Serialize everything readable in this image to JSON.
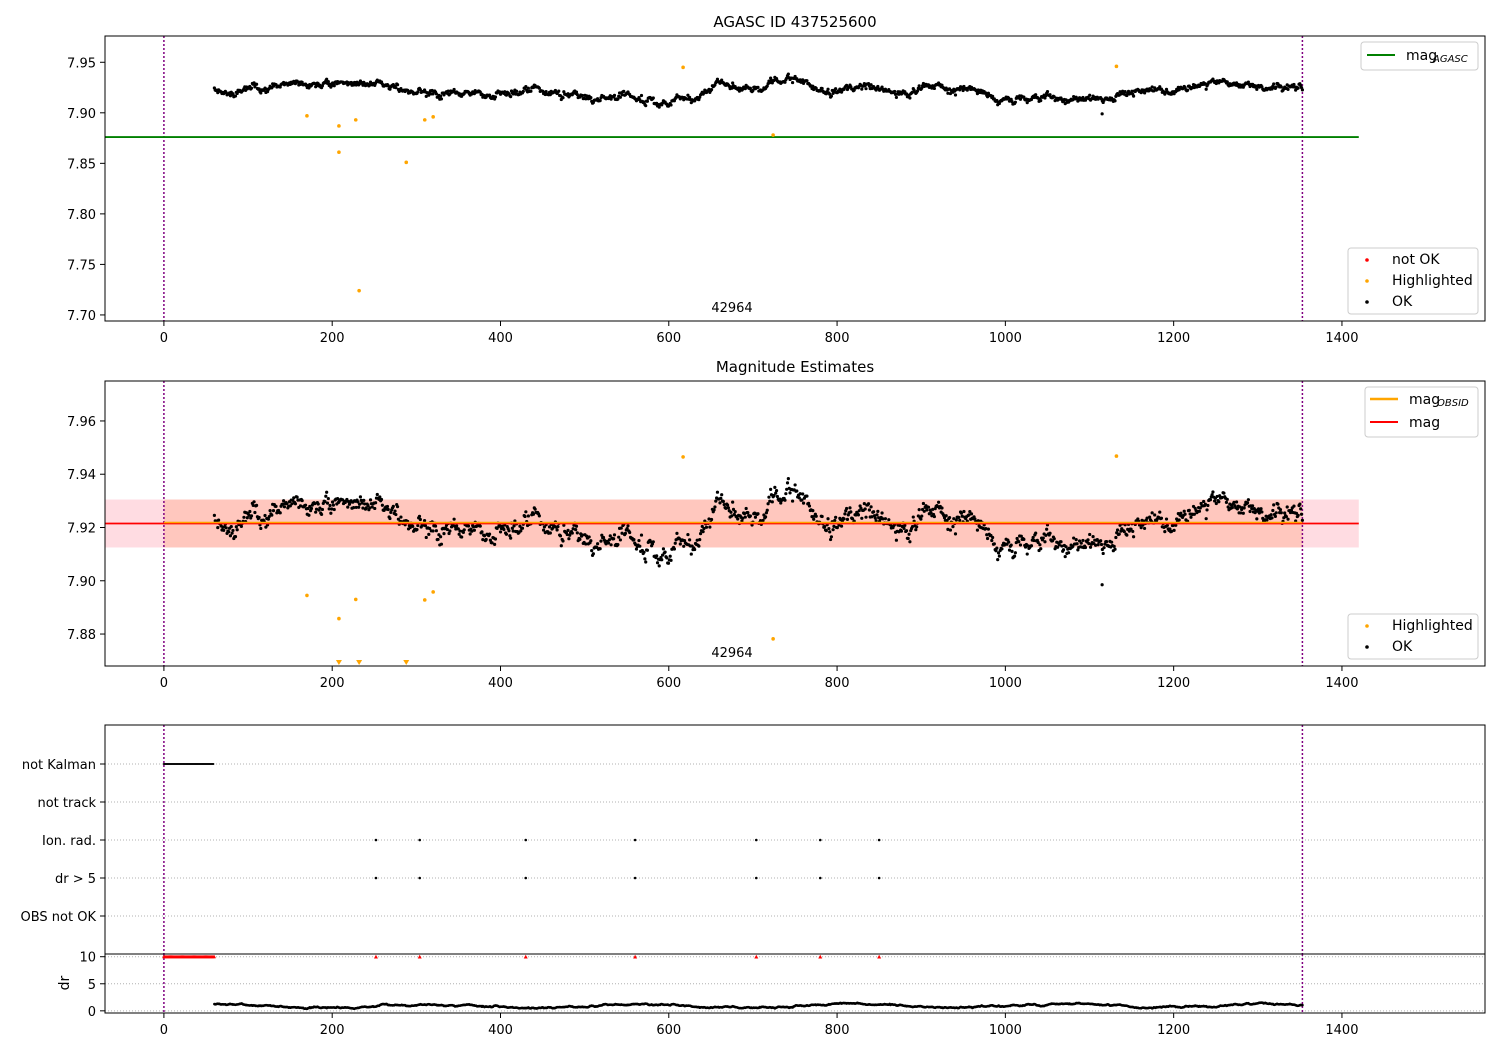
{
  "chart_data": [
    {
      "type": "scatter",
      "title": "AGASC ID 437525600",
      "xlim": [
        -70,
        1570
      ],
      "ylim": [
        7.694,
        7.976
      ],
      "xticks": [
        "0",
        "200",
        "400",
        "600",
        "800",
        "1000",
        "1200",
        "1400"
      ],
      "yticks": [
        "7.70",
        "7.75",
        "7.80",
        "7.85",
        "7.90",
        "7.95"
      ],
      "annotation": "42964",
      "vlines": [
        0,
        1353
      ],
      "hline": {
        "name": "mag_AGASC",
        "y": 7.876,
        "x_range": [
          -70,
          1420
        ],
        "color": "#008000"
      },
      "legend_lines": [
        {
          "label": "mag",
          "sub": "AGASC",
          "color": "#008000"
        }
      ],
      "legend_points": [
        {
          "label": "not OK",
          "color": "#ff0000"
        },
        {
          "label": "Highlighted",
          "color": "#ffa500"
        },
        {
          "label": "OK",
          "color": "#000000"
        }
      ],
      "highlighted_points": [
        {
          "x": 170,
          "y": 7.897
        },
        {
          "x": 208,
          "y": 7.887
        },
        {
          "x": 208,
          "y": 7.861
        },
        {
          "x": 228,
          "y": 7.893
        },
        {
          "x": 232,
          "y": 7.724
        },
        {
          "x": 288,
          "y": 7.851
        },
        {
          "x": 310,
          "y": 7.893
        },
        {
          "x": 320,
          "y": 7.896
        },
        {
          "x": 617,
          "y": 7.945
        },
        {
          "x": 724,
          "y": 7.878
        },
        {
          "x": 1132,
          "y": 7.946
        }
      ],
      "ok_outliers": [
        {
          "x": 1115,
          "y": 7.899
        }
      ],
      "ok_band": {
        "x_range": [
          60,
          1353
        ],
        "center": 7.921,
        "wiggle": 0.013,
        "noise": 0.006,
        "count": 1290
      }
    },
    {
      "type": "scatter",
      "title": "Magnitude Estimates",
      "xlim": [
        -70,
        1570
      ],
      "ylim": [
        7.868,
        7.975
      ],
      "xticks": [
        "0",
        "200",
        "400",
        "600",
        "800",
        "1000",
        "1200",
        "1400"
      ],
      "yticks": [
        "7.88",
        "7.90",
        "7.92",
        "7.94",
        "7.96"
      ],
      "annotation": "42964",
      "vlines": [
        0,
        1353
      ],
      "mag_line": {
        "name": "mag",
        "y": 7.9215,
        "x_range": [
          -70,
          1420
        ],
        "color": "#ff0000",
        "band": [
          7.9125,
          7.9305
        ],
        "band_color": "#ffc0cb"
      },
      "mag_obsid_line": {
        "name": "mag_OBSID",
        "y": 7.9215,
        "x_range": [
          0,
          1353
        ],
        "color": "#ffa500",
        "band": [
          7.9125,
          7.9305
        ],
        "band_color": "#ffa07a"
      },
      "legend_lines": [
        {
          "label": "mag",
          "sub": "OBSID",
          "color": "#ffa500"
        },
        {
          "label": "mag",
          "sub": "",
          "color": "#ff0000"
        }
      ],
      "legend_points": [
        {
          "label": "Highlighted",
          "color": "#ffa500"
        },
        {
          "label": "OK",
          "color": "#000000"
        }
      ],
      "highlighted_points": [
        {
          "x": 170,
          "y": 7.8945
        },
        {
          "x": 208,
          "y": 7.8858
        },
        {
          "x": 228,
          "y": 7.893
        },
        {
          "x": 310,
          "y": 7.8928
        },
        {
          "x": 320,
          "y": 7.8958
        },
        {
          "x": 617,
          "y": 7.9465
        },
        {
          "x": 724,
          "y": 7.8782
        },
        {
          "x": 1132,
          "y": 7.9468
        }
      ],
      "offscale_markers": [
        {
          "x": 208
        },
        {
          "x": 232
        },
        {
          "x": 288
        }
      ],
      "ok_outliers": [
        {
          "x": 1115,
          "y": 7.8985
        }
      ],
      "ok_band": {
        "x_range": [
          60,
          1353
        ],
        "center": 7.921,
        "wiggle": 0.013,
        "noise": 0.006,
        "count": 1290
      }
    },
    {
      "type": "scatter",
      "title": "",
      "xlim": [
        -70,
        1570
      ],
      "categories": [
        "not Kalman",
        "not track",
        "Ion. rad.",
        "dr > 5",
        "OBS not OK"
      ],
      "vlines": [
        0,
        1353
      ],
      "not_kalman_range": [
        0,
        60
      ],
      "event_times": [
        252,
        304,
        430,
        560,
        704,
        780,
        850
      ]
    },
    {
      "type": "scatter",
      "title": "",
      "ylabel": "dr",
      "xlim": [
        -70,
        1570
      ],
      "ylim": [
        -0.4,
        10.5
      ],
      "xticks": [
        "0",
        "200",
        "400",
        "600",
        "800",
        "1000",
        "1200",
        "1400"
      ],
      "yticks": [
        "0",
        "5",
        "10"
      ],
      "vlines": [
        0,
        1353
      ],
      "flag_range": [
        0,
        60
      ],
      "event_times": [
        252,
        304,
        430,
        560,
        704,
        780,
        850
      ],
      "flag_value": 10,
      "dr_band": {
        "x_range": [
          60,
          1353
        ],
        "center": 0.9,
        "wiggle": 0.6,
        "noise": 0.25,
        "count": 1290
      }
    }
  ]
}
